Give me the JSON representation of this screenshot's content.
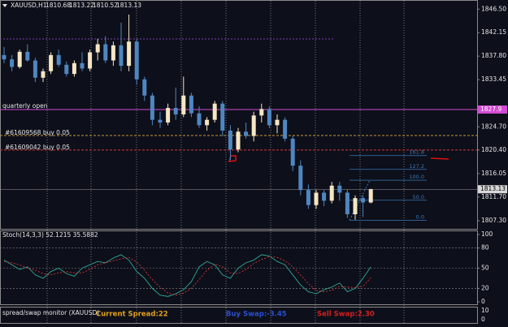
{
  "chart_data": {
    "type": "candlestick",
    "symbol": "XAUUSD,H1",
    "candles": [
      [
        1838.0,
        1839.5,
        1836.5,
        1837.2
      ],
      [
        1837.2,
        1838.0,
        1835.0,
        1835.8
      ],
      [
        1835.8,
        1839.0,
        1835.5,
        1838.6
      ],
      [
        1838.6,
        1840.0,
        1836.8,
        1837.0
      ],
      [
        1837.0,
        1837.5,
        1833.0,
        1833.8
      ],
      [
        1833.8,
        1835.5,
        1833.0,
        1835.0
      ],
      [
        1835.0,
        1838.5,
        1834.5,
        1838.0
      ],
      [
        1838.0,
        1839.0,
        1835.8,
        1836.2
      ],
      [
        1836.2,
        1836.8,
        1834.0,
        1834.5
      ],
      [
        1834.5,
        1837.0,
        1834.0,
        1836.5
      ],
      [
        1836.5,
        1838.5,
        1835.0,
        1835.5
      ],
      [
        1835.5,
        1839.0,
        1835.0,
        1838.5
      ],
      [
        1838.5,
        1841.0,
        1837.0,
        1840.0
      ],
      [
        1840.0,
        1841.5,
        1836.5,
        1837.0
      ],
      [
        1837.0,
        1840.5,
        1836.0,
        1839.8
      ],
      [
        1839.8,
        1844.0,
        1835.0,
        1836.0
      ],
      [
        1836.0,
        1845.5,
        1835.0,
        1840.5
      ],
      [
        1840.5,
        1841.0,
        1832.5,
        1833.5
      ],
      [
        1833.5,
        1834.0,
        1829.5,
        1830.5
      ],
      [
        1830.5,
        1831.0,
        1825.0,
        1826.0
      ],
      [
        1826.0,
        1827.5,
        1824.5,
        1825.5
      ],
      [
        1825.5,
        1829.0,
        1825.0,
        1828.2
      ],
      [
        1828.2,
        1832.0,
        1826.0,
        1827.0
      ],
      [
        1827.0,
        1834.0,
        1826.5,
        1830.5
      ],
      [
        1830.5,
        1831.0,
        1826.5,
        1827.2
      ],
      [
        1827.2,
        1828.5,
        1824.5,
        1825.0
      ],
      [
        1825.0,
        1826.5,
        1824.0,
        1826.0
      ],
      [
        1826.0,
        1829.5,
        1825.5,
        1829.0
      ],
      [
        1829.0,
        1829.5,
        1823.0,
        1824.0
      ],
      [
        1824.0,
        1825.0,
        1818.5,
        1820.5
      ],
      [
        1820.5,
        1824.5,
        1820.0,
        1823.8
      ],
      [
        1823.8,
        1825.5,
        1822.5,
        1823.0
      ],
      [
        1823.0,
        1827.5,
        1822.0,
        1826.8
      ],
      [
        1826.8,
        1829.0,
        1825.5,
        1828.0
      ],
      [
        1828.0,
        1828.5,
        1824.5,
        1825.0
      ],
      [
        1825.0,
        1827.0,
        1823.5,
        1826.0
      ],
      [
        1826.0,
        1826.5,
        1822.0,
        1822.5
      ],
      [
        1822.5,
        1823.0,
        1816.5,
        1817.5
      ],
      [
        1817.5,
        1818.5,
        1812.0,
        1813.0
      ],
      [
        1813.0,
        1814.0,
        1809.5,
        1810.2
      ],
      [
        1810.2,
        1813.0,
        1809.5,
        1812.5
      ],
      [
        1812.5,
        1813.0,
        1810.0,
        1811.0
      ],
      [
        1811.0,
        1814.5,
        1810.5,
        1813.8
      ],
      [
        1813.8,
        1814.5,
        1811.0,
        1812.5
      ],
      [
        1812.5,
        1813.0,
        1807.8,
        1808.5
      ],
      [
        1808.5,
        1812.0,
        1807.5,
        1811.5
      ],
      [
        1811.5,
        1812.0,
        1808.0,
        1810.68
      ],
      [
        1810.68,
        1813.22,
        1810.52,
        1813.13
      ]
    ],
    "up_color": "#f5e6c4",
    "down_color": "#4f86c0",
    "ylim": [
      1805.8,
      1848.2
    ],
    "yticks": [
      {
        "value": 1846.5,
        "label": "1846.50"
      },
      {
        "value": 1842.15,
        "label": "1842.15"
      },
      {
        "value": 1837.8,
        "label": "1837.80"
      },
      {
        "value": 1833.45,
        "label": "1833.45"
      },
      {
        "value": 1824.7,
        "label": "1824.70"
      },
      {
        "value": 1820.4,
        "label": "1820.40"
      },
      {
        "value": 1816.05,
        "label": "1816.05"
      },
      {
        "value": 1811.7,
        "label": "1811.70"
      },
      {
        "value": 1807.3,
        "label": "1807.30"
      }
    ],
    "lines": [
      {
        "name": "quarterly open",
        "value": 1827.9,
        "color": "#d24bd2",
        "tag": true
      },
      {
        "name": "#61609568 buy 0.05",
        "value": 1823.1,
        "color": "#c89a3a"
      },
      {
        "name": "#61609042 buy 0.05",
        "value": 1820.4,
        "color": "#d23a3a"
      }
    ],
    "fibonacci": {
      "low": 1807.4,
      "high": 1814.8,
      "color": "#3c78b4",
      "levels": [
        161.8,
        127.2,
        {
          "value": 100,
          "label": "100.0"
        },
        {
          "value": 50,
          "label": "50.0"
        },
        {
          "value": 0,
          "label": "0.0"
        }
      ]
    },
    "stochastic": {
      "title": "Stoch(14,3,3) 52.1215 35.5882",
      "ylim": [
        0,
        100
      ],
      "yticks": [
        100,
        80,
        50,
        20,
        0
      ],
      "levels": [
        80,
        50,
        20
      ],
      "main": [
        62,
        55,
        48,
        52,
        40,
        35,
        45,
        50,
        42,
        38,
        50,
        55,
        60,
        58,
        65,
        70,
        62,
        45,
        35,
        20,
        10,
        8,
        12,
        18,
        30,
        52,
        60,
        55,
        40,
        35,
        50,
        58,
        62,
        70,
        68,
        60,
        55,
        40,
        25,
        15,
        12,
        18,
        22,
        28,
        15,
        20,
        35,
        52
      ],
      "signal": [
        60,
        58,
        55,
        50,
        47,
        42,
        40,
        43,
        45,
        43,
        43,
        48,
        55,
        58,
        61,
        64,
        66,
        59,
        47,
        33,
        22,
        13,
        10,
        13,
        20,
        33,
        47,
        56,
        52,
        43,
        42,
        48,
        57,
        63,
        67,
        66,
        61,
        52,
        40,
        27,
        17,
        15,
        17,
        23,
        22,
        21,
        23,
        36
      ],
      "main_color": "#2fa89a",
      "signal_color": "#d23a3a"
    },
    "monitor": {
      "title": "spread/swap monitor (XAUUSD)",
      "items": [
        {
          "text": "Current Spread:22",
          "color": "#e0a020"
        },
        {
          "text": "Buy Swap:-3.45",
          "color": "#2a4fd0"
        },
        {
          "text": "Sell Swap:2.30",
          "color": "#d02020"
        }
      ],
      "yticks": [
        10,
        0
      ]
    }
  }
}
